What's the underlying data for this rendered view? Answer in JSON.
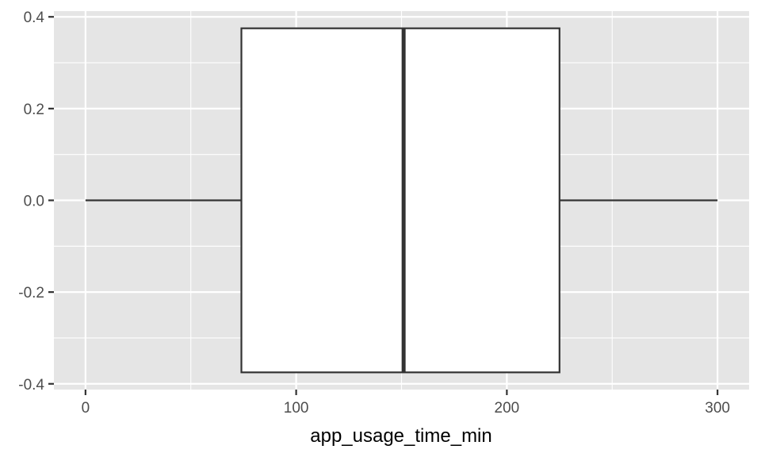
{
  "chart_data": {
    "type": "boxplot",
    "title": "",
    "xlabel": "app_usage_time_min",
    "ylabel": "",
    "xlim": [
      -15,
      315
    ],
    "ylim": [
      -0.4125,
      0.4125
    ],
    "x_ticks": [
      0,
      100,
      200,
      300
    ],
    "x_tick_labels": [
      "0",
      "100",
      "200",
      "300"
    ],
    "x_minor_ticks": [
      50,
      150,
      250
    ],
    "y_ticks": [
      -0.4,
      -0.2,
      0.0,
      0.2,
      0.4
    ],
    "y_tick_labels": [
      "-0.4",
      "-0.2",
      "0.0",
      "0.2",
      "0.4"
    ],
    "y_minor_ticks": [
      -0.3,
      -0.1,
      0.1,
      0.3
    ],
    "box": {
      "min": 0,
      "q1": 74,
      "median": 151,
      "q3": 225,
      "max": 300,
      "half_width": 0.375
    },
    "grid": true,
    "legend": "none",
    "colors": {
      "panel": "#e5e5e5",
      "grid": "#ffffff",
      "box_fill": "#ffffff",
      "box_line": "#333333"
    }
  }
}
